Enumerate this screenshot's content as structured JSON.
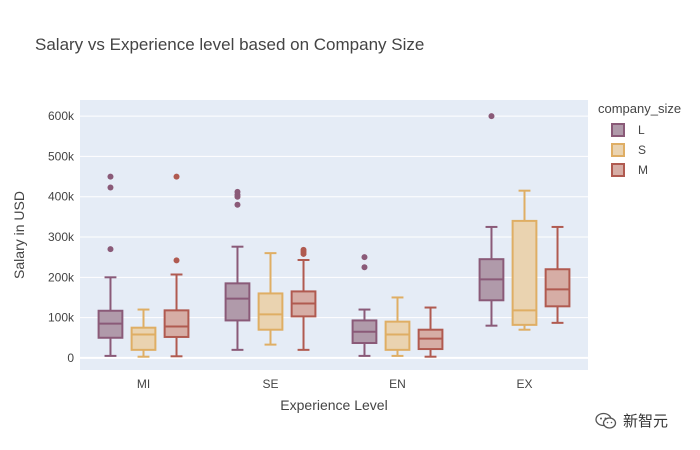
{
  "chart_data": {
    "type": "box",
    "title": "Salary vs Experience level based on Company Size",
    "xlabel": "Experience Level",
    "ylabel": "Salary in USD",
    "categories": [
      "MI",
      "SE",
      "EN",
      "EX"
    ],
    "ylim": [
      -30000,
      640000
    ],
    "yticks": [
      0,
      100000,
      200000,
      300000,
      400000,
      500000,
      600000
    ],
    "ytick_labels": [
      "0",
      "100k",
      "200k",
      "300k",
      "400k",
      "500k",
      "600k"
    ],
    "legend_title": "company_size",
    "legend_position": "right",
    "series": [
      {
        "name": "L",
        "color": "#8a5a78",
        "fill": "#b09aaa",
        "boxes": [
          {
            "category": "MI",
            "min": 5000,
            "q1": 50000,
            "median": 85000,
            "q3": 117000,
            "max": 200000,
            "outliers": [
              270000,
              423000,
              450000
            ]
          },
          {
            "category": "SE",
            "min": 20000,
            "q1": 93000,
            "median": 147000,
            "q3": 185000,
            "max": 276000,
            "outliers": [
              380000,
              400000,
              405000,
              412000
            ]
          },
          {
            "category": "EN",
            "min": 5000,
            "q1": 37000,
            "median": 65000,
            "q3": 93000,
            "max": 120000,
            "outliers": [
              225000,
              250000
            ]
          },
          {
            "category": "EX",
            "min": 80000,
            "q1": 143000,
            "median": 195000,
            "q3": 245000,
            "max": 325000,
            "outliers": [
              600000
            ]
          }
        ]
      },
      {
        "name": "S",
        "color": "#dfae64",
        "fill": "#ead3b0",
        "boxes": [
          {
            "category": "MI",
            "min": 3000,
            "q1": 20000,
            "median": 58000,
            "q3": 75000,
            "max": 120000,
            "outliers": []
          },
          {
            "category": "SE",
            "min": 33000,
            "q1": 70000,
            "median": 108000,
            "q3": 160000,
            "max": 260000,
            "outliers": []
          },
          {
            "category": "EN",
            "min": 5000,
            "q1": 20000,
            "median": 58000,
            "q3": 90000,
            "max": 150000,
            "outliers": []
          },
          {
            "category": "EX",
            "min": 70000,
            "q1": 82000,
            "median": 118000,
            "q3": 340000,
            "max": 415000,
            "outliers": []
          }
        ]
      },
      {
        "name": "M",
        "color": "#b05a50",
        "fill": "#d6ada5",
        "boxes": [
          {
            "category": "MI",
            "min": 4000,
            "q1": 52000,
            "median": 78000,
            "q3": 118000,
            "max": 207000,
            "outliers": [
              242000,
              450000
            ]
          },
          {
            "category": "SE",
            "min": 20000,
            "q1": 103000,
            "median": 135000,
            "q3": 165000,
            "max": 243000,
            "outliers": [
              258000,
              263000,
              268000
            ]
          },
          {
            "category": "EN",
            "min": 3000,
            "q1": 22000,
            "median": 48000,
            "q3": 70000,
            "max": 125000,
            "outliers": []
          },
          {
            "category": "EX",
            "min": 87000,
            "q1": 128000,
            "median": 170000,
            "q3": 220000,
            "max": 325000,
            "outliers": []
          }
        ]
      }
    ]
  },
  "watermark": {
    "text": "新智元",
    "icon": "wechat-icon"
  }
}
